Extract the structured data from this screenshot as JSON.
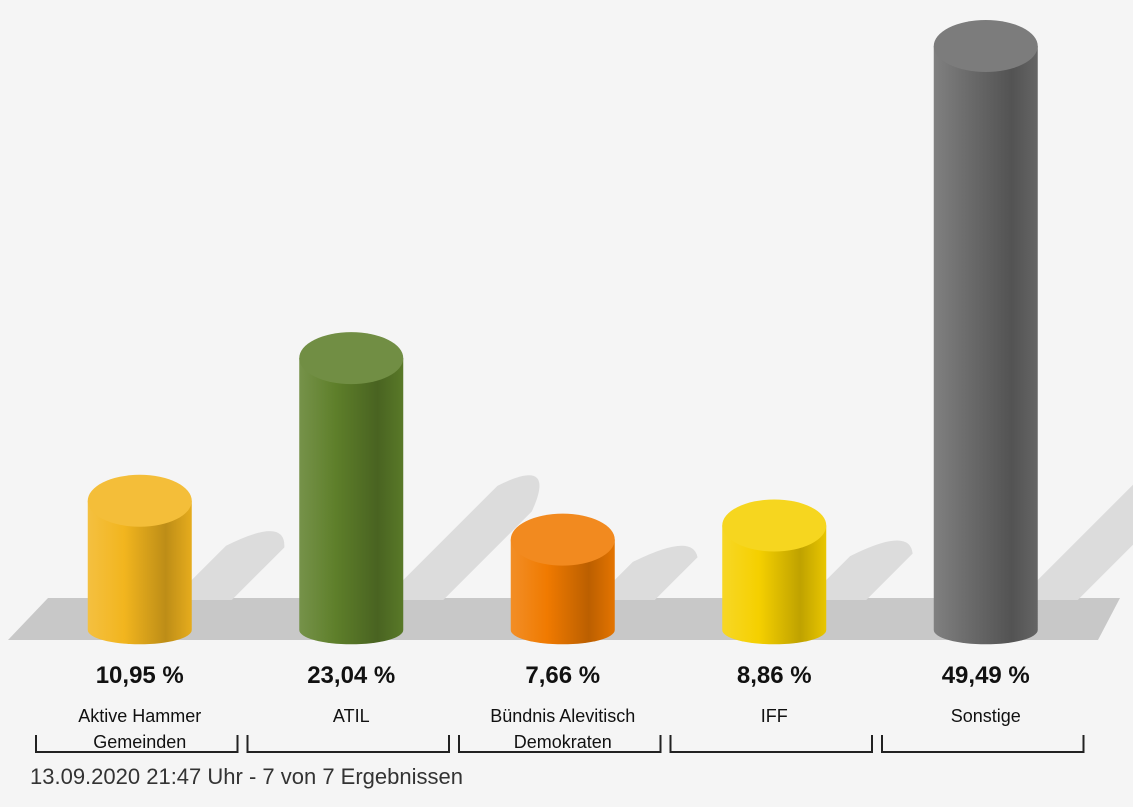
{
  "chart_data": {
    "type": "bar",
    "categories": [
      "Aktive Hammer Gemeinden",
      "ATIL",
      "Bündnis Alevitisch Demokraten",
      "IFF",
      "Sonstige"
    ],
    "category_lines": [
      [
        "Aktive Hammer",
        "Gemeinden"
      ],
      [
        "ATIL"
      ],
      [
        "Bündnis Alevitisch",
        "Demokraten"
      ],
      [
        "IFF"
      ],
      [
        "Sonstige"
      ]
    ],
    "values": [
      10.95,
      23.04,
      7.66,
      8.86,
      49.49
    ],
    "value_labels": [
      "10,95 %",
      "23,04 %",
      "7,66 %",
      "8,86 %",
      "49,49 %"
    ],
    "colors": [
      "#f2b51e",
      "#5e7f2a",
      "#f07a00",
      "#f5d000",
      "#6a6a6a"
    ],
    "ylim": [
      0,
      50
    ],
    "grid": false,
    "legend": "none"
  },
  "footer": {
    "text": "13.09.2020 21:47 Uhr - 7 von 7 Ergebnissen"
  }
}
